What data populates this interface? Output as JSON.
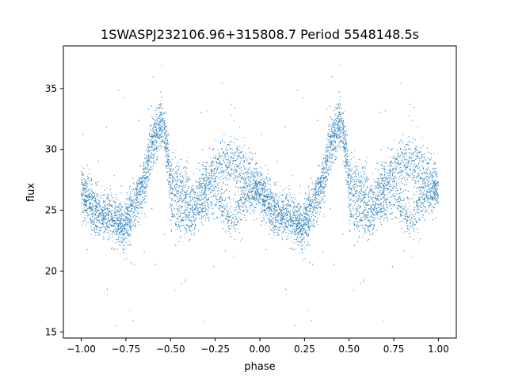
{
  "chart_data": {
    "type": "scatter",
    "title": "1SWASPJ232106.96+315808.7 Period 5548148.5s",
    "xlabel": "phase",
    "ylabel": "flux",
    "xlim": [
      -1.1,
      1.1
    ],
    "ylim": [
      14.5,
      38.5
    ],
    "xticks": [
      -1.0,
      -0.75,
      -0.5,
      -0.25,
      0.0,
      0.25,
      0.5,
      0.75,
      1.0
    ],
    "xtick_labels": [
      "−1.00",
      "−0.75",
      "−0.50",
      "−0.25",
      "0.00",
      "0.25",
      "0.50",
      "0.75",
      "1.00"
    ],
    "yticks": [
      15,
      20,
      25,
      30,
      35
    ],
    "ytick_labels": [
      "15",
      "20",
      "25",
      "30",
      "35"
    ],
    "grid": false,
    "color": "#1f77b4",
    "trend": {
      "phase": [
        0.0,
        0.03,
        0.06,
        0.09,
        0.12,
        0.15,
        0.18,
        0.21,
        0.24,
        0.27,
        0.3,
        0.33,
        0.36,
        0.38,
        0.4,
        0.41,
        0.43,
        0.45,
        0.47,
        0.5,
        0.53,
        0.56,
        0.6,
        0.63,
        0.66,
        0.68,
        0.7,
        0.73,
        0.76,
        0.79,
        0.82,
        0.85,
        0.88,
        0.91,
        0.94,
        0.97,
        1.0
      ],
      "flux": [
        26.5,
        26.0,
        25.3,
        24.9,
        24.6,
        24.5,
        24.3,
        24.0,
        23.5,
        24.5,
        25.5,
        26.5,
        27.5,
        29.5,
        30.5,
        31.0,
        31.5,
        32.0,
        31.2,
        27.5,
        27.0,
        26.8,
        26.5,
        25.5,
        26.5,
        27.0,
        27.5,
        28.0,
        28.5,
        28.7,
        28.8,
        28.9,
        28.7,
        28.3,
        27.8,
        27.0,
        26.5
      ]
    },
    "secondary_branch": {
      "phase": [
        0.5,
        0.55,
        0.6,
        0.65,
        0.7,
        0.75,
        0.8,
        0.85,
        0.9,
        0.95,
        1.0
      ],
      "flux": [
        25.0,
        24.5,
        24.0,
        25.0,
        25.5,
        26.0,
        25.0,
        24.0,
        25.5,
        26.5,
        26.5
      ]
    },
    "point_count": 6000,
    "scatter_sd": 1.0
  }
}
